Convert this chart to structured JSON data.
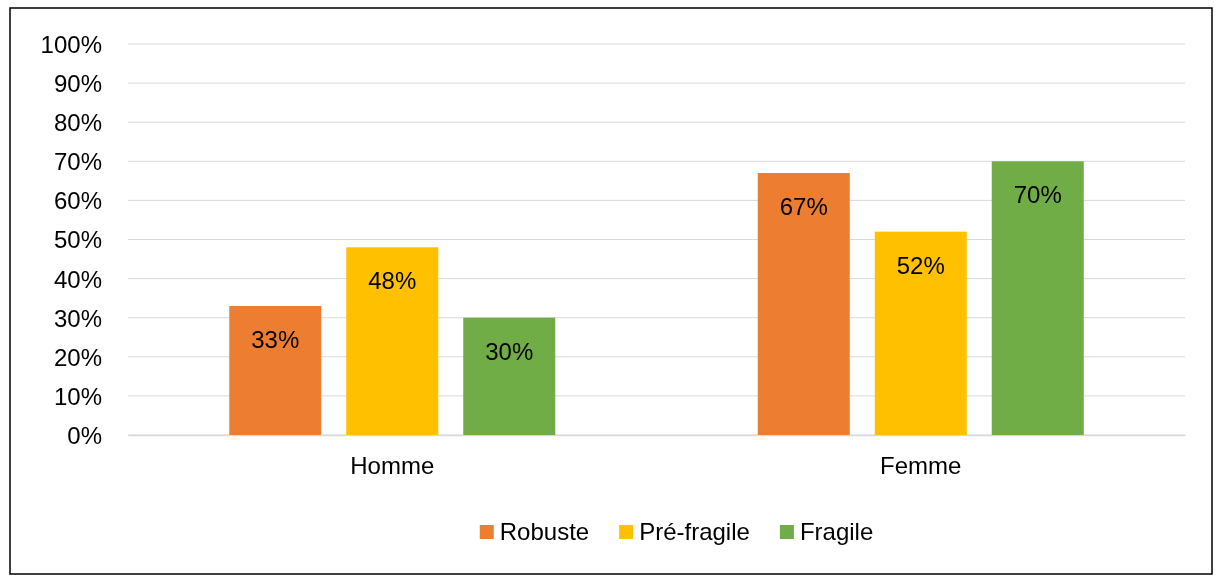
{
  "chart_data": {
    "type": "bar",
    "categories": [
      "Homme",
      "Femme"
    ],
    "series": [
      {
        "name": "Robuste",
        "color": "#ed7d31",
        "values": [
          33,
          67
        ],
        "value_labels": [
          "33%",
          "67%"
        ]
      },
      {
        "name": "Pré-fragile",
        "color": "#ffc000",
        "values": [
          48,
          52
        ],
        "value_labels": [
          "48%",
          "52%"
        ]
      },
      {
        "name": "Fragile",
        "color": "#70ad47",
        "values": [
          30,
          70
        ],
        "value_labels": [
          "30%",
          "70%"
        ]
      }
    ],
    "ylim": [
      0,
      100
    ],
    "yticks": [
      {
        "value": 0,
        "label": "0%"
      },
      {
        "value": 10,
        "label": "10%"
      },
      {
        "value": 20,
        "label": "20%"
      },
      {
        "value": 30,
        "label": "30%"
      },
      {
        "value": 40,
        "label": "40%"
      },
      {
        "value": 50,
        "label": "50%"
      },
      {
        "value": 60,
        "label": "60%"
      },
      {
        "value": 70,
        "label": "70%"
      },
      {
        "value": 80,
        "label": "80%"
      },
      {
        "value": 90,
        "label": "90%"
      },
      {
        "value": 100,
        "label": "100%"
      }
    ],
    "grid": "y",
    "legend": "bottom"
  }
}
